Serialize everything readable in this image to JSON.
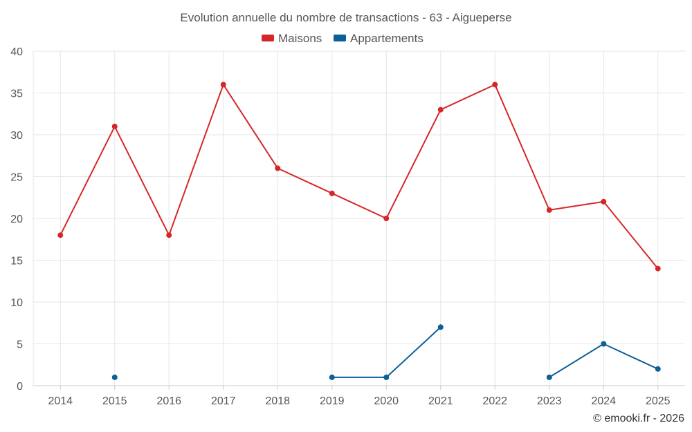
{
  "chart_data": {
    "type": "line",
    "title": "Evolution annuelle du nombre de transactions - 63 - Aigueperse",
    "categories": [
      "2014",
      "2015",
      "2016",
      "2017",
      "2018",
      "2019",
      "2020",
      "2021",
      "2022",
      "2023",
      "2024",
      "2025"
    ],
    "series": [
      {
        "name": "Maisons",
        "color": "#d62728",
        "values": [
          18,
          31,
          18,
          36,
          26,
          23,
          20,
          33,
          36,
          21,
          22,
          14
        ]
      },
      {
        "name": "Appartements",
        "color": "#0d5f96",
        "values": [
          null,
          1,
          null,
          null,
          null,
          1,
          1,
          7,
          null,
          1,
          5,
          2
        ]
      }
    ],
    "ylim": [
      0,
      40
    ],
    "yticks": [
      0,
      5,
      10,
      15,
      20,
      25,
      30,
      35,
      40
    ],
    "grid": true,
    "legend_position": "top-center"
  },
  "credit": "© emooki.fr - 2026"
}
